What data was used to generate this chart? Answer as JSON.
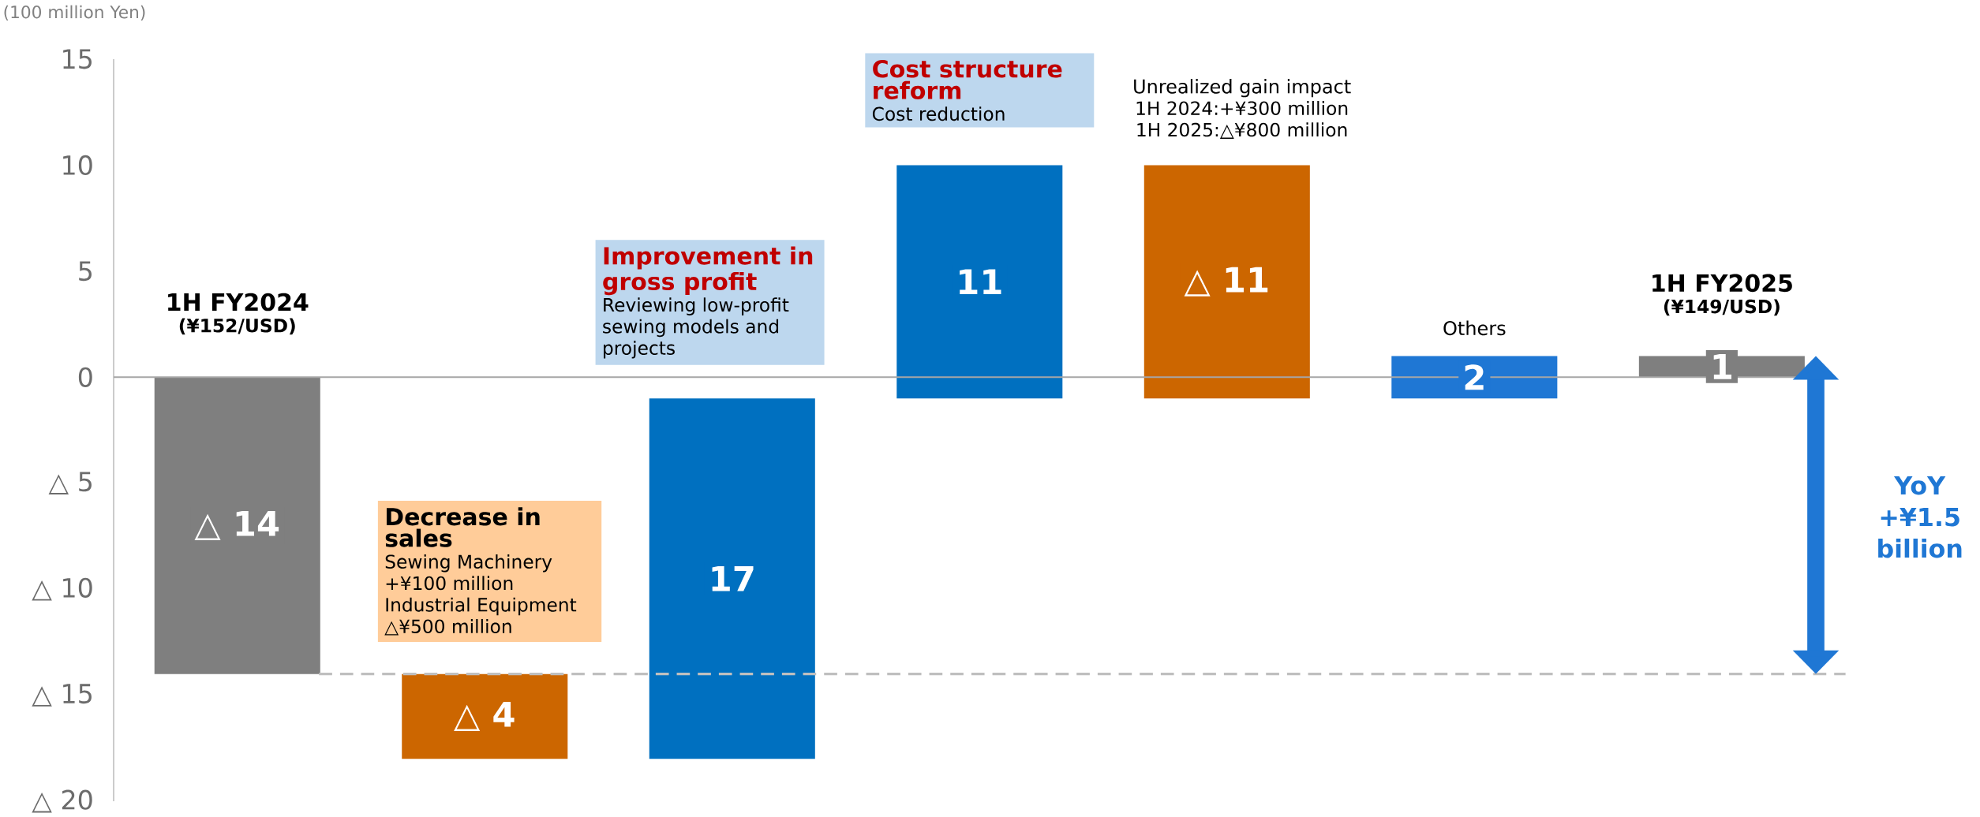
{
  "chart_data": {
    "type": "bar",
    "ylabel": "(100 million Yen)",
    "categories": [
      "1H FY2024",
      "Decrease in sales",
      "Improvement in gross profit",
      "Cost structure reform",
      "Unrealized gain impact",
      "Others",
      "1H FY2025"
    ],
    "values": [
      -14,
      -4,
      17,
      11,
      -11,
      2,
      1
    ],
    "base": [
      0,
      -14,
      -18,
      -1,
      10,
      -1,
      0
    ],
    "colors": [
      "#7f7f7f",
      "#cc6600",
      "#0070c0",
      "#0070c0",
      "#cc6600",
      "#1f77d4",
      "#7f7f7f"
    ],
    "value_labels": [
      "△ 14",
      "△ 4",
      "17",
      "11",
      "△ 11",
      "2",
      "1"
    ],
    "ylim": [
      -20,
      15
    ],
    "yticks": [
      15,
      10,
      5,
      0,
      {
        "value": -5,
        "label": "△ 5"
      },
      {
        "value": -10,
        "label": "△ 10"
      },
      {
        "value": -15,
        "label": "△ 15"
      },
      {
        "value": -20,
        "label": "△ 20"
      }
    ],
    "ref_lines": [
      {
        "axis": "y",
        "value": -14,
        "line_style": "dashed",
        "color": "#bfbfbf"
      }
    ],
    "annotations": [
      "(¥152/USD)",
      "Sewing Machinery +¥100 million",
      "Industrial Equipment △¥500 million",
      "Reviewing low-profit sewing models and projects",
      "Cost reduction",
      "1H 2024:+¥300 million",
      "1H 2025:△¥800 million",
      "(¥149/USD)",
      "YoY +¥1.5 billion"
    ]
  }
}
